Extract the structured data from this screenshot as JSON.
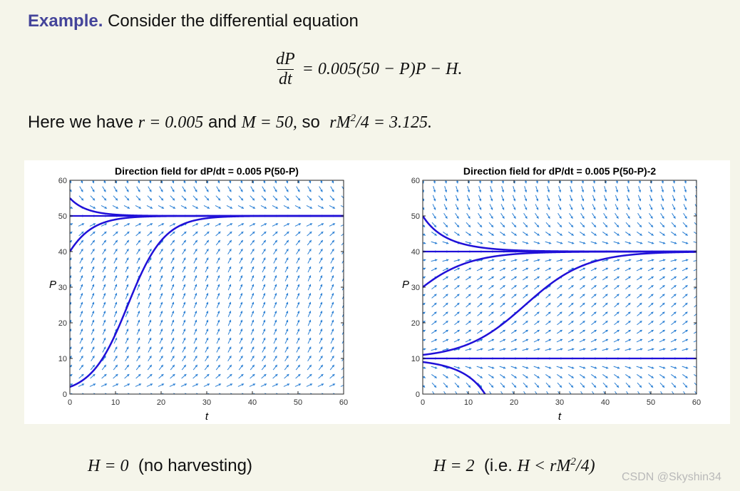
{
  "example": {
    "label": "Example.",
    "text": "Consider the differential equation"
  },
  "equation": {
    "numerator": "dP",
    "denominator": "dt",
    "rhs": "= 0.005(50 − P)P − H."
  },
  "params": {
    "prefix": "Here we have",
    "r_expr": "r = 0.005",
    "and": "and",
    "m_expr": "M = 50,",
    "so": "so",
    "crit_lhs": "rM",
    "crit_sup": "2",
    "crit_rhs": "/4 = 3.125."
  },
  "chart_data": [
    {
      "type": "line",
      "title": "Direction field for dP/dt = 0.005 P(50-P)",
      "xlabel": "t",
      "ylabel": "P",
      "xlim": [
        0,
        60
      ],
      "ylim": [
        0,
        60
      ],
      "xticks": [
        0,
        10,
        20,
        30,
        40,
        50,
        60
      ],
      "yticks": [
        0,
        10,
        20,
        30,
        40,
        50,
        60
      ],
      "grid": false,
      "rate": {
        "r": 0.005,
        "M": 50,
        "H": 0
      },
      "field_color": "#2a7fd4",
      "curve_color": "#2010d8",
      "series": [
        {
          "initial": [
            0,
            2
          ]
        },
        {
          "initial": [
            0,
            40
          ]
        },
        {
          "initial": [
            0,
            55
          ]
        }
      ],
      "equilibria": [
        50
      ]
    },
    {
      "type": "line",
      "title": "Direction field for dP/dt = 0.005 P(50-P)-2",
      "xlabel": "t",
      "ylabel": "P",
      "xlim": [
        0,
        60
      ],
      "ylim": [
        0,
        60
      ],
      "xticks": [
        0,
        10,
        20,
        30,
        40,
        50,
        60
      ],
      "yticks": [
        0,
        10,
        20,
        30,
        40,
        50,
        60
      ],
      "grid": false,
      "rate": {
        "r": 0.005,
        "M": 50,
        "H": 2
      },
      "field_color": "#2a7fd4",
      "curve_color": "#2010d8",
      "series": [
        {
          "initial": [
            0,
            9
          ]
        },
        {
          "initial": [
            0,
            11
          ]
        },
        {
          "initial": [
            0,
            30
          ]
        },
        {
          "initial": [
            0,
            50
          ]
        }
      ],
      "equilibria": [
        10,
        40
      ]
    }
  ],
  "captions": {
    "left_math": "H = 0",
    "left_text": "(no harvesting)",
    "right_math": "H = 2",
    "right_text_open": "(i.e.",
    "right_math2": "H < rM",
    "right_sup": "2",
    "right_math3": "/4)"
  },
  "watermark": "CSDN @Skyshin34"
}
